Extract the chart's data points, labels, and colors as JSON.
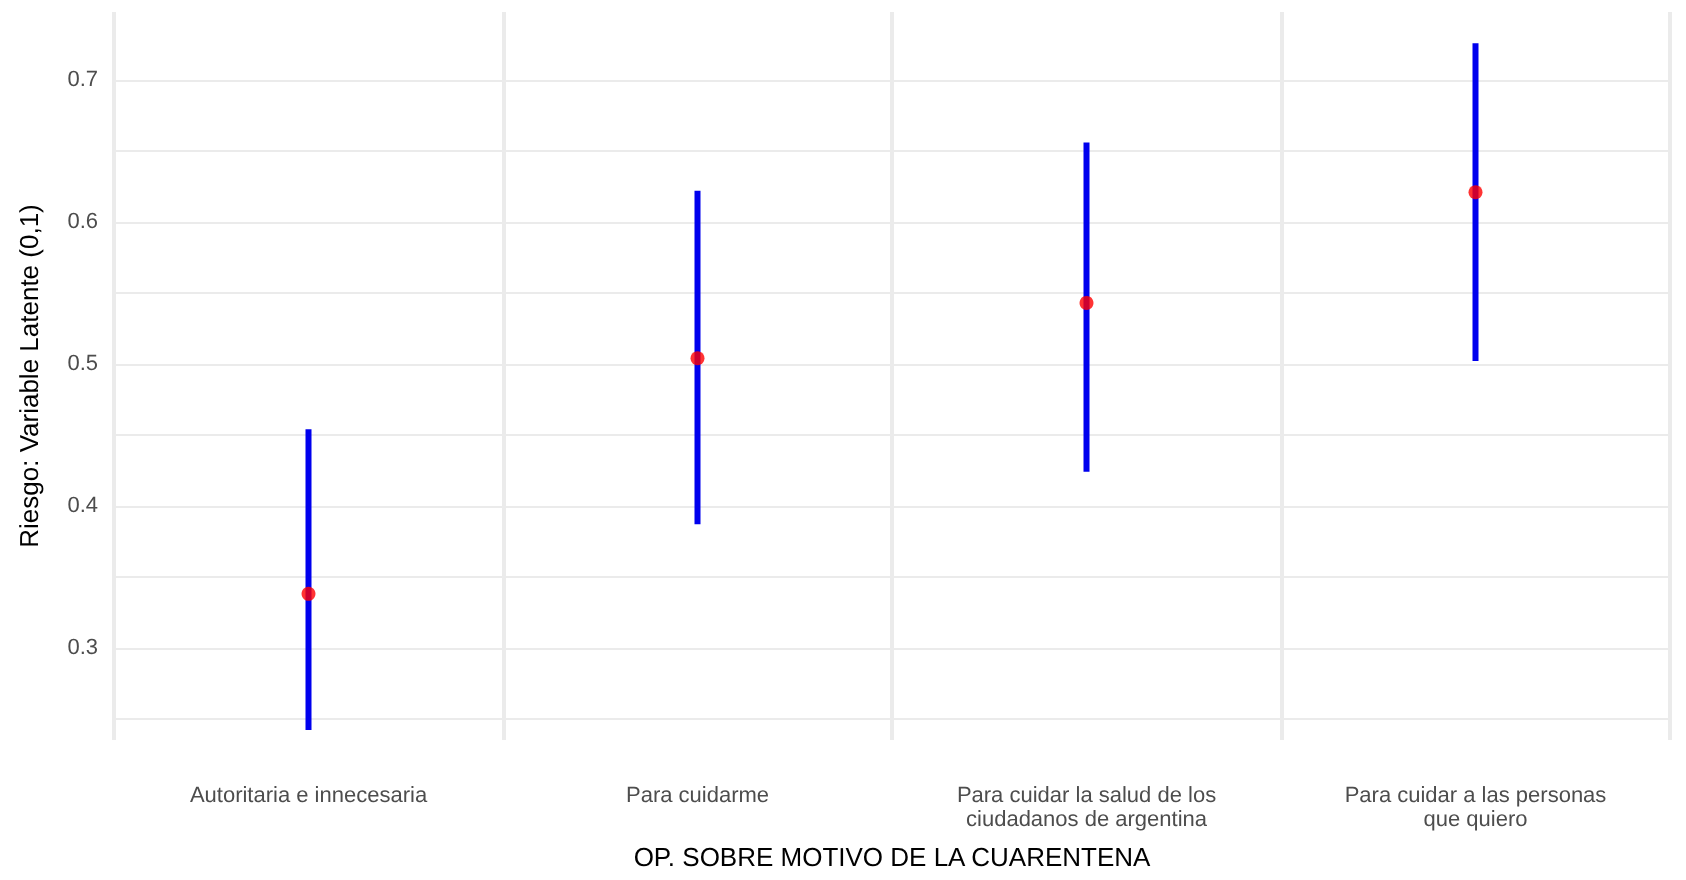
{
  "chart_data": {
    "type": "scatter",
    "xlabel": "OP. SOBRE MOTIVO DE LA CUARENTENA",
    "ylabel": "Riesgo: Variable Latente (0,1)",
    "categories": [
      "Autoritaria e innecesaria",
      "Para cuidarme",
      "Para cuidar la salud de los\nciudadanos de argentina",
      "Para cuidar a las personas\nque quiero"
    ],
    "series": [
      {
        "color": "#ff0000",
        "values": [
          0.338,
          0.504,
          0.543,
          0.621
        ],
        "errors": [
          [
            0.242,
            0.454
          ],
          [
            0.387,
            0.622
          ],
          [
            0.424,
            0.656
          ],
          [
            0.502,
            0.726
          ]
        ]
      }
    ],
    "ylim": [
      0.235,
      0.748
    ],
    "yticks": [
      {
        "value": 0.25,
        "label": null
      },
      0.3,
      {
        "value": 0.35,
        "label": null
      },
      0.4,
      {
        "value": 0.45,
        "label": null
      },
      0.5,
      {
        "value": 0.55,
        "label": null
      },
      0.6,
      {
        "value": 0.65,
        "label": null
      },
      0.7
    ],
    "grid": true,
    "marker": "circle"
  }
}
